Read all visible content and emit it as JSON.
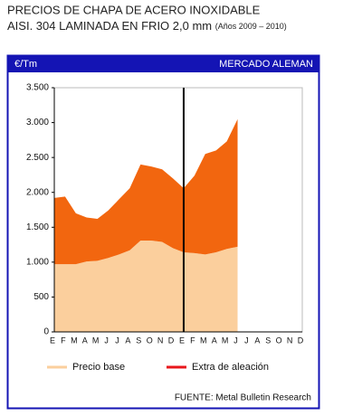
{
  "chart_data": {
    "type": "stacked_area",
    "title": "PRECIOS DE CHAPA DE ACERO INOXIDABLE",
    "subtitle": "AISI. 304 LAMINADA EN FRIO 2,0 mm",
    "subtitle_note": "(Años 2009 – 2010)",
    "y_label": "€/Tm",
    "header": "MERCADO ALEMAN",
    "source": "FUENTE: Metal Bulletin Research",
    "categories": [
      "E",
      "F",
      "M",
      "A",
      "M",
      "J",
      "J",
      "A",
      "S",
      "O",
      "N",
      "D",
      "E",
      "F",
      "M",
      "A",
      "M",
      "J",
      "J",
      "A",
      "S",
      "O",
      "N",
      "D"
    ],
    "series": [
      {
        "name": "Precio base",
        "color": "#fbcf9d",
        "legend_color": "#fbcf9d",
        "values": [
          970,
          970,
          970,
          1010,
          1020,
          1060,
          1110,
          1170,
          1310,
          1310,
          1290,
          1200,
          1140,
          1130,
          1110,
          1140,
          1190,
          1220,
          null,
          null,
          null,
          null,
          null,
          null
        ]
      },
      {
        "name": "Extra de aleación",
        "color": "#f2660f",
        "legend_color": "#e8161b",
        "values": [
          950,
          970,
          730,
          630,
          600,
          680,
          790,
          890,
          1090,
          1060,
          1040,
          1000,
          920,
          1110,
          1440,
          1460,
          1540,
          1830,
          null,
          null,
          null,
          null,
          null,
          null
        ]
      }
    ],
    "ylim": [
      0,
      3500
    ],
    "yticks": [
      0,
      500,
      {
        "value": 1000,
        "label": "1.000"
      },
      {
        "value": 1500,
        "label": "1.500"
      },
      {
        "value": 2000,
        "label": "2.000"
      },
      {
        "value": 2500,
        "label": "2.500"
      },
      {
        "value": 3000,
        "label": "3.000"
      },
      {
        "value": 3500,
        "label": "3.500"
      }
    ],
    "vline": 12,
    "frame_color": "#1414b4"
  }
}
